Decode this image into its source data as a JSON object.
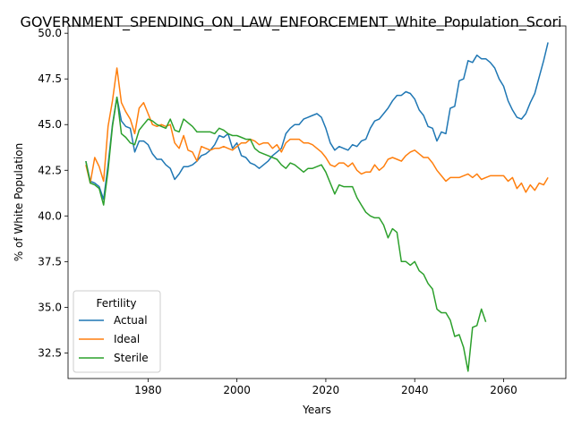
{
  "chart_data": {
    "type": "line",
    "title": "GOVERNMENT_SPENDING_ON_LAW_ENFORCEMENT_White_Population_Scori",
    "xlabel": "Years",
    "ylabel": "% of White Population",
    "xlim": [
      1962,
      2074
    ],
    "ylim": [
      31.1,
      50.4
    ],
    "xticks": [
      1980,
      2000,
      2020,
      2040,
      2060
    ],
    "yticks": [
      32.5,
      35.0,
      37.5,
      40.0,
      42.5,
      45.0,
      47.5,
      50.0
    ],
    "ytick_labels": [
      "32.5",
      "35.0",
      "37.5",
      "40.0",
      "42.5",
      "45.0",
      "47.5",
      "50.0"
    ],
    "grid": false,
    "legend": {
      "title": "Fertility",
      "placement": "lower-left"
    },
    "series": [
      {
        "name": "Actual",
        "color": "#1f77b4",
        "x": [
          1966,
          1967,
          1968,
          1969,
          1970,
          1971,
          1972,
          1973,
          1974,
          1975,
          1976,
          1977,
          1978,
          1979,
          1980,
          1981,
          1982,
          1983,
          1984,
          1985,
          1986,
          1987,
          1988,
          1989,
          1990,
          1991,
          1992,
          1993,
          1994,
          1995,
          1996,
          1997,
          1998,
          1999,
          2000,
          2001,
          2002,
          2003,
          2004,
          2005,
          2006,
          2007,
          2008,
          2009,
          2010,
          2011,
          2012,
          2013,
          2014,
          2015,
          2016,
          2017,
          2018,
          2019,
          2020,
          2021,
          2022,
          2023,
          2024,
          2025,
          2026,
          2027,
          2028,
          2029,
          2030,
          2031,
          2032,
          2033,
          2034,
          2035,
          2036,
          2037,
          2038,
          2039,
          2040,
          2041,
          2042,
          2043,
          2044,
          2045,
          2046,
          2047,
          2048,
          2049,
          2050,
          2051,
          2052,
          2053,
          2054,
          2055,
          2056,
          2057,
          2058,
          2059,
          2060,
          2061,
          2062,
          2063,
          2064,
          2065,
          2066,
          2067,
          2068,
          2069,
          2070
        ],
        "values": [
          43.0,
          41.9,
          41.8,
          41.6,
          40.9,
          42.8,
          45.0,
          46.5,
          45.2,
          44.9,
          44.8,
          43.5,
          44.1,
          44.1,
          43.9,
          43.4,
          43.1,
          43.1,
          42.8,
          42.6,
          42.0,
          42.3,
          42.7,
          42.7,
          42.8,
          43.0,
          43.3,
          43.4,
          43.6,
          43.9,
          44.4,
          44.3,
          44.5,
          43.7,
          44.0,
          43.3,
          43.2,
          42.9,
          42.8,
          42.6,
          42.8,
          43.0,
          43.3,
          43.5,
          43.7,
          44.5,
          44.8,
          45.0,
          45.0,
          45.3,
          45.4,
          45.5,
          45.6,
          45.4,
          44.8,
          44.0,
          43.6,
          43.8,
          43.7,
          43.6,
          43.9,
          43.8,
          44.1,
          44.2,
          44.8,
          45.2,
          45.3,
          45.6,
          45.9,
          46.3,
          46.6,
          46.6,
          46.8,
          46.7,
          46.4,
          45.8,
          45.5,
          44.9,
          44.8,
          44.1,
          44.6,
          44.5,
          45.9,
          46.0,
          47.4,
          47.5,
          48.5,
          48.4,
          48.8,
          48.6,
          48.6,
          48.4,
          48.1,
          47.5,
          47.1,
          46.3,
          45.8,
          45.4,
          45.3,
          45.6,
          46.2,
          46.7,
          47.6,
          48.5,
          49.5
        ]
      },
      {
        "name": "Ideal",
        "color": "#ff7f0e",
        "x": [
          1966,
          1967,
          1968,
          1969,
          1970,
          1971,
          1972,
          1973,
          1974,
          1975,
          1976,
          1977,
          1978,
          1979,
          1980,
          1981,
          1982,
          1983,
          1984,
          1985,
          1986,
          1987,
          1988,
          1989,
          1990,
          1991,
          1992,
          1993,
          1994,
          1995,
          1996,
          1997,
          1998,
          1999,
          2000,
          2001,
          2002,
          2003,
          2004,
          2005,
          2006,
          2007,
          2008,
          2009,
          2010,
          2011,
          2012,
          2013,
          2014,
          2015,
          2016,
          2017,
          2018,
          2019,
          2020,
          2021,
          2022,
          2023,
          2024,
          2025,
          2026,
          2027,
          2028,
          2029,
          2030,
          2031,
          2032,
          2033,
          2034,
          2035,
          2036,
          2037,
          2038,
          2039,
          2040,
          2041,
          2042,
          2043,
          2044,
          2045,
          2046,
          2047,
          2048,
          2049,
          2050,
          2051,
          2052,
          2053,
          2054,
          2055,
          2056,
          2057,
          2058,
          2059,
          2060,
          2061,
          2062,
          2063,
          2064,
          2065,
          2066,
          2067,
          2068,
          2069,
          2070
        ],
        "values": [
          42.8,
          41.8,
          43.2,
          42.7,
          41.9,
          44.9,
          46.3,
          48.1,
          46.2,
          45.7,
          45.3,
          44.5,
          45.9,
          46.2,
          45.6,
          45.0,
          44.9,
          45.0,
          44.9,
          45.0,
          44.0,
          43.7,
          44.4,
          43.6,
          43.5,
          43.0,
          43.8,
          43.7,
          43.6,
          43.7,
          43.7,
          43.8,
          43.7,
          43.6,
          43.8,
          44.0,
          44.0,
          44.2,
          44.1,
          43.9,
          44.0,
          44.0,
          43.7,
          43.9,
          43.5,
          44.0,
          44.2,
          44.2,
          44.2,
          44.0,
          44.0,
          43.9,
          43.7,
          43.5,
          43.2,
          42.8,
          42.7,
          42.9,
          42.9,
          42.7,
          42.9,
          42.5,
          42.3,
          42.4,
          42.4,
          42.8,
          42.5,
          42.7,
          43.1,
          43.2,
          43.1,
          43.0,
          43.3,
          43.5,
          43.6,
          43.4,
          43.2,
          43.2,
          42.9,
          42.5,
          42.2,
          41.9,
          42.1,
          42.1,
          42.1,
          42.2,
          42.3,
          42.1,
          42.3,
          42.0,
          42.1,
          42.2,
          42.2,
          42.2,
          42.2,
          41.9,
          42.1,
          41.5,
          41.8,
          41.3,
          41.7,
          41.4,
          41.8,
          41.7,
          42.1
        ]
      },
      {
        "name": "Sterile",
        "color": "#2ca02c",
        "x": [
          1966,
          1967,
          1968,
          1969,
          1970,
          1971,
          1972,
          1973,
          1974,
          1975,
          1976,
          1977,
          1978,
          1979,
          1980,
          1981,
          1982,
          1983,
          1984,
          1985,
          1986,
          1987,
          1988,
          1989,
          1990,
          1991,
          1992,
          1993,
          1994,
          1995,
          1996,
          1997,
          1998,
          1999,
          2000,
          2001,
          2002,
          2003,
          2004,
          2005,
          2006,
          2007,
          2008,
          2009,
          2010,
          2011,
          2012,
          2013,
          2014,
          2015,
          2016,
          2017,
          2018,
          2019,
          2020,
          2021,
          2022,
          2023,
          2024,
          2025,
          2026,
          2027,
          2028,
          2029,
          2030,
          2031,
          2032,
          2033,
          2034,
          2035,
          2036,
          2037,
          2038,
          2039,
          2040,
          2041,
          2042,
          2043,
          2044,
          2045,
          2046,
          2047,
          2048,
          2049,
          2050,
          2051,
          2052,
          2053,
          2054,
          2055,
          2056
        ],
        "values": [
          43.0,
          41.8,
          41.7,
          41.5,
          40.6,
          42.5,
          44.9,
          46.5,
          44.5,
          44.3,
          44.0,
          43.9,
          44.7,
          45.0,
          45.3,
          45.2,
          45.0,
          44.9,
          44.8,
          45.3,
          44.7,
          44.6,
          45.3,
          45.1,
          44.9,
          44.6,
          44.6,
          44.6,
          44.6,
          44.5,
          44.8,
          44.7,
          44.5,
          44.4,
          44.4,
          44.3,
          44.2,
          44.2,
          43.7,
          43.5,
          43.4,
          43.3,
          43.2,
          43.1,
          42.8,
          42.6,
          42.9,
          42.8,
          42.6,
          42.4,
          42.6,
          42.6,
          42.7,
          42.8,
          42.4,
          41.8,
          41.2,
          41.7,
          41.6,
          41.6,
          41.6,
          41.0,
          40.6,
          40.2,
          40.0,
          39.9,
          39.9,
          39.5,
          38.8,
          39.3,
          39.1,
          37.5,
          37.5,
          37.3,
          37.5,
          37.0,
          36.8,
          36.3,
          36.0,
          34.9,
          34.7,
          34.7,
          34.3,
          33.4,
          33.5,
          32.8,
          31.5,
          33.9,
          34.0,
          34.9,
          34.2
        ]
      }
    ]
  }
}
